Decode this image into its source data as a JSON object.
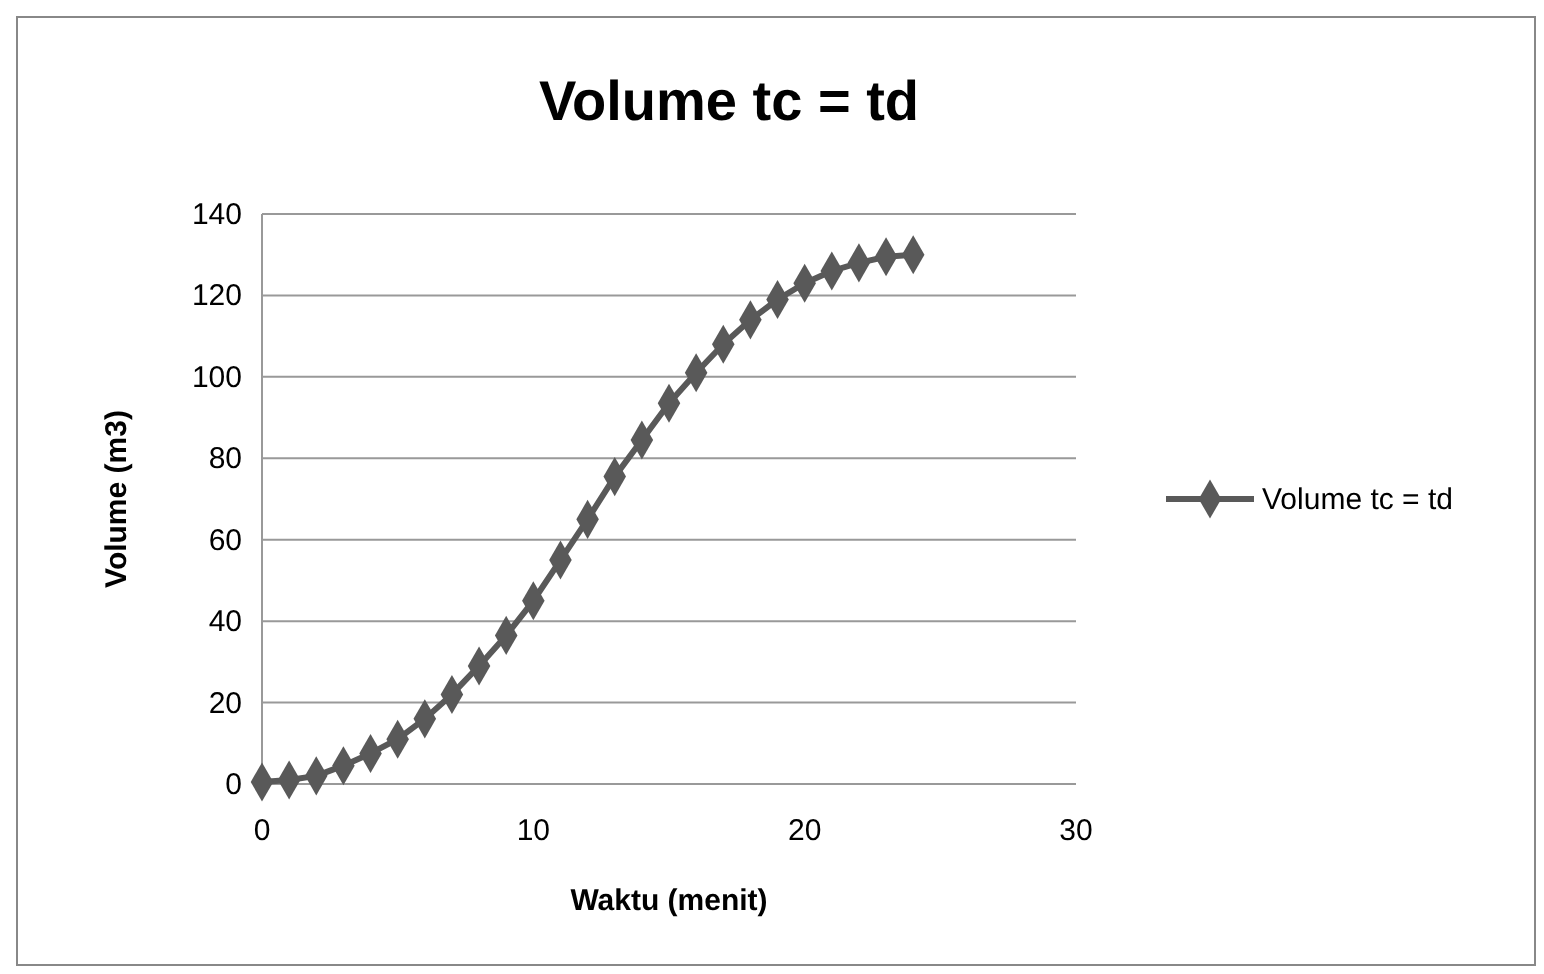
{
  "chart_data": {
    "type": "line",
    "title": "Volume tc = td",
    "xlabel": "Waktu (menit)",
    "ylabel": "Volume (m3)",
    "x": [
      0,
      1,
      2,
      3,
      4,
      5,
      6,
      7,
      8,
      9,
      10,
      11,
      12,
      13,
      14,
      15,
      16,
      17,
      18,
      19,
      20,
      21,
      22,
      23,
      24
    ],
    "series": [
      {
        "name": "Volume tc = td",
        "color": "#595959",
        "values": [
          0.5,
          1,
          2,
          4.5,
          7.5,
          11,
          16,
          22,
          29,
          36.5,
          45,
          55,
          65,
          75.5,
          84.5,
          93.5,
          101,
          108,
          114,
          119,
          123,
          126,
          128,
          129.5,
          130
        ]
      }
    ],
    "xlim": [
      0,
      30
    ],
    "xticks": [
      0,
      10,
      20,
      30
    ],
    "ylim": [
      0,
      140
    ],
    "yticks": [
      0,
      20,
      40,
      60,
      80,
      100,
      120,
      140
    ],
    "grid": "y",
    "legend": "right",
    "marker": "diamond"
  }
}
